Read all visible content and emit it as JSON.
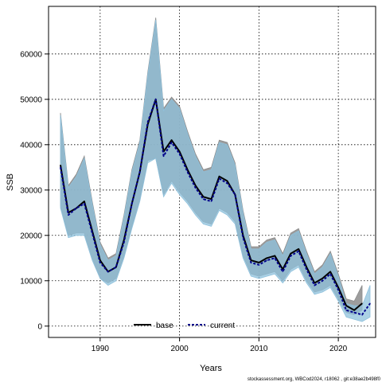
{
  "chart_data": {
    "type": "line",
    "title": "",
    "xlabel": "Years",
    "ylabel": "SSB",
    "xlim": [
      1983.5,
      2024.7
    ],
    "ylim": [
      -2500,
      70500
    ],
    "xticks": [
      1990,
      2000,
      2010,
      2020
    ],
    "yticks": [
      0,
      10000,
      20000,
      30000,
      40000,
      50000,
      60000
    ],
    "grid": true,
    "legend_position": "bottom-center",
    "footer": "stockassessment.org, WBCod2024, r18062 , git:e38ae2b498f0",
    "colors": {
      "base": "#000000",
      "current": "#00008b",
      "base_band": "#8c8c8c",
      "current_band": "#8fc1dc"
    },
    "x": [
      1985,
      1986,
      1987,
      1988,
      1989,
      1990,
      1991,
      1992,
      1993,
      1994,
      1995,
      1996,
      1997,
      1998,
      1999,
      2000,
      2001,
      2002,
      2003,
      2004,
      2005,
      2006,
      2007,
      2008,
      2009,
      2010,
      2011,
      2012,
      2013,
      2014,
      2015,
      2016,
      2017,
      2018,
      2019,
      2020,
      2021,
      2022,
      2023,
      2024
    ],
    "series": [
      {
        "name": "base",
        "values": [
          35500,
          25000,
          26000,
          27500,
          21000,
          14500,
          12000,
          13000,
          19000,
          27000,
          34000,
          44500,
          50000,
          38500,
          41000,
          38500,
          34500,
          31000,
          28500,
          28000,
          33000,
          32000,
          29000,
          20000,
          14500,
          14000,
          15000,
          15500,
          12500,
          16000,
          17000,
          13000,
          9500,
          10500,
          12000,
          8500,
          4500,
          3500,
          5000,
          null
        ],
        "lower": [
          26500,
          20000,
          20500,
          20500,
          15000,
          10500,
          9500,
          10500,
          15500,
          22000,
          28000,
          36500,
          37000,
          29000,
          32000,
          29500,
          27500,
          25000,
          23000,
          22500,
          26000,
          25000,
          23000,
          15500,
          11500,
          11000,
          11500,
          12000,
          10000,
          12500,
          13500,
          10000,
          7500,
          8000,
          9000,
          6000,
          3000,
          2500,
          3500,
          null
        ],
        "upper": [
          47000,
          31000,
          33500,
          37500,
          27500,
          18500,
          15000,
          16000,
          24500,
          34500,
          41000,
          56000,
          68000,
          48000,
          50500,
          48500,
          43000,
          38000,
          34500,
          35000,
          41000,
          40500,
          36000,
          25500,
          17500,
          17500,
          19000,
          19500,
          16000,
          20500,
          21500,
          16500,
          12000,
          13500,
          16500,
          11500,
          6000,
          5500,
          9000,
          null
        ]
      },
      {
        "name": "current",
        "values": [
          35000,
          24500,
          26000,
          27000,
          20500,
          14000,
          12000,
          13000,
          18500,
          27000,
          34000,
          45000,
          50000,
          37500,
          40500,
          38000,
          34000,
          30500,
          28000,
          27500,
          32500,
          31500,
          29000,
          19500,
          14000,
          13500,
          14500,
          15000,
          12000,
          15500,
          16500,
          12500,
          9000,
          10000,
          11500,
          8000,
          3500,
          3000,
          2500,
          5000
        ],
        "lower": [
          26000,
          19500,
          20000,
          20000,
          14500,
          10500,
          9000,
          10000,
          15000,
          21500,
          27500,
          36000,
          37000,
          28500,
          31500,
          29000,
          27000,
          24500,
          22500,
          22000,
          25500,
          24500,
          22500,
          15000,
          11000,
          10500,
          11000,
          11500,
          9500,
          12000,
          13000,
          9500,
          7000,
          7500,
          8500,
          5500,
          2000,
          1500,
          1000,
          2000
        ],
        "upper": [
          46500,
          30500,
          33000,
          37000,
          27000,
          18000,
          14500,
          15500,
          24000,
          34000,
          40500,
          55500,
          67500,
          47500,
          50000,
          48000,
          42500,
          37500,
          34000,
          34500,
          40500,
          40000,
          35500,
          25000,
          17000,
          17000,
          18500,
          19000,
          15500,
          20000,
          21000,
          16000,
          11500,
          13000,
          16000,
          11000,
          5000,
          4500,
          4500,
          9000
        ]
      }
    ]
  }
}
